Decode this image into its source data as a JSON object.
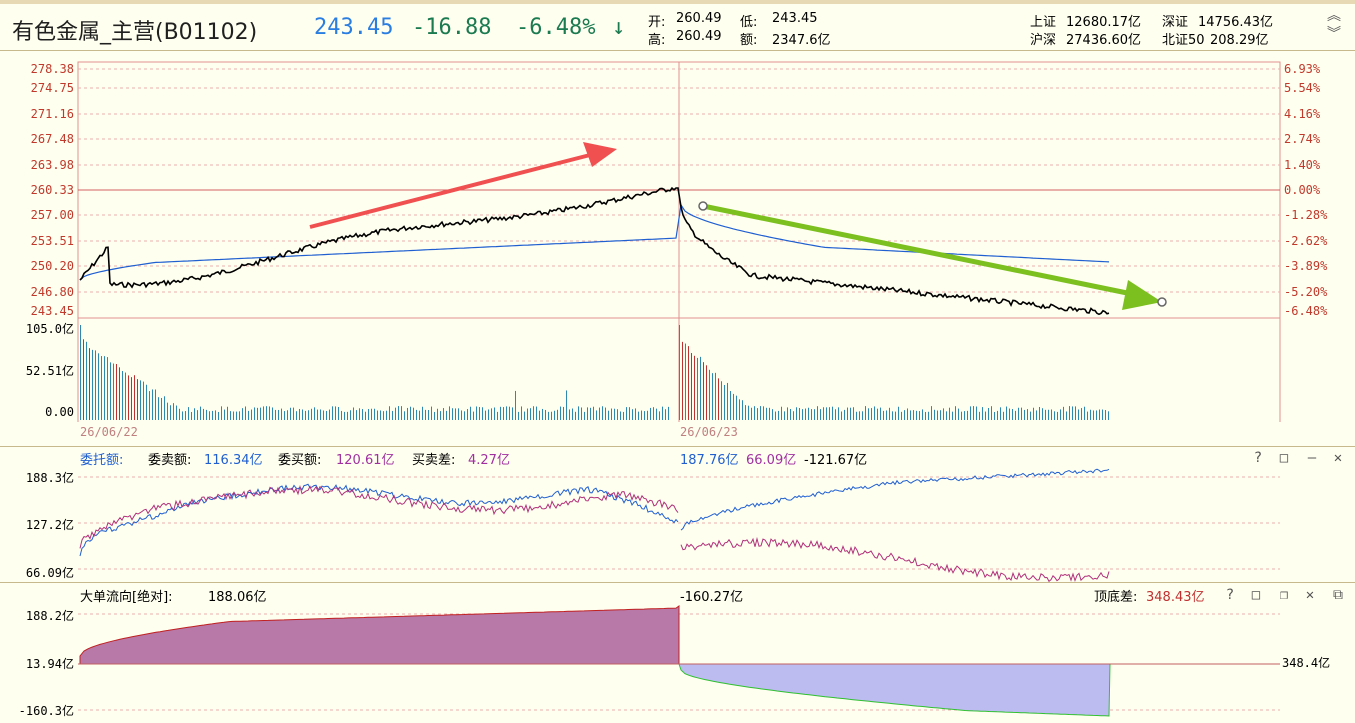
{
  "header": {
    "name": "有色金属_主营(B01102)",
    "price": "243.45",
    "change": "-16.88",
    "change_pct": "-6.48%",
    "arrow": "↓",
    "open_label": "开:",
    "open": "260.49",
    "low_label": "低:",
    "low": "243.45",
    "high_label": "高:",
    "high": "260.49",
    "amount_label": "额:",
    "amount": "2347.6亿",
    "indices": [
      {
        "name": "上证",
        "value": "12680.17亿"
      },
      {
        "name": "深证",
        "value": "14756.43亿"
      },
      {
        "name": "沪深",
        "value": "27436.60亿"
      },
      {
        "name": "北证50",
        "value": "208.29亿"
      }
    ]
  },
  "price_panel": {
    "left_ticks": [
      "278.38",
      "274.75",
      "271.16",
      "267.48",
      "263.98",
      "260.33",
      "257.00",
      "253.51",
      "250.20",
      "246.80",
      "243.45"
    ],
    "right_ticks": [
      "6.93%",
      "5.54%",
      "4.16%",
      "2.74%",
      "1.40%",
      "0.00%",
      "-1.28%",
      "-2.62%",
      "-3.89%",
      "-5.20%",
      "-6.48%"
    ],
    "vol_ticks": [
      "105.0亿",
      "52.51亿",
      "0.00"
    ],
    "dates": [
      "26/06/22",
      "26/06/23"
    ]
  },
  "order_panel": {
    "title": "委托额:",
    "sell_label": "委卖额:",
    "sell_value": "116.34亿",
    "buy_label": "委买额:",
    "buy_value": "120.61亿",
    "diff_label": "买卖差:",
    "diff_value": "4.27亿",
    "day2_a": "187.76亿",
    "day2_b": "66.09亿",
    "day2_c": "-121.67亿",
    "ticks": [
      "188.3亿",
      "127.2亿",
      "66.09亿"
    ]
  },
  "flow_panel": {
    "title": "大单流向[绝对]:",
    "value": "188.06亿",
    "day2_value": "-160.27亿",
    "top_bottom_label": "顶底差:",
    "top_bottom_value": "348.43亿",
    "ticks": [
      "188.2亿",
      "13.94亿",
      "-160.3亿"
    ],
    "right_value": "348.4亿"
  },
  "colors": {
    "bg": "#fffff0",
    "grid": "#e0a0a0",
    "price_line": "#000000",
    "avg_line": "#1f5fd0",
    "up_arrow": "#f05050",
    "down_arrow": "#7cc020",
    "positive_area": "#b878a8",
    "negative_area": "#bcbcf0"
  }
}
